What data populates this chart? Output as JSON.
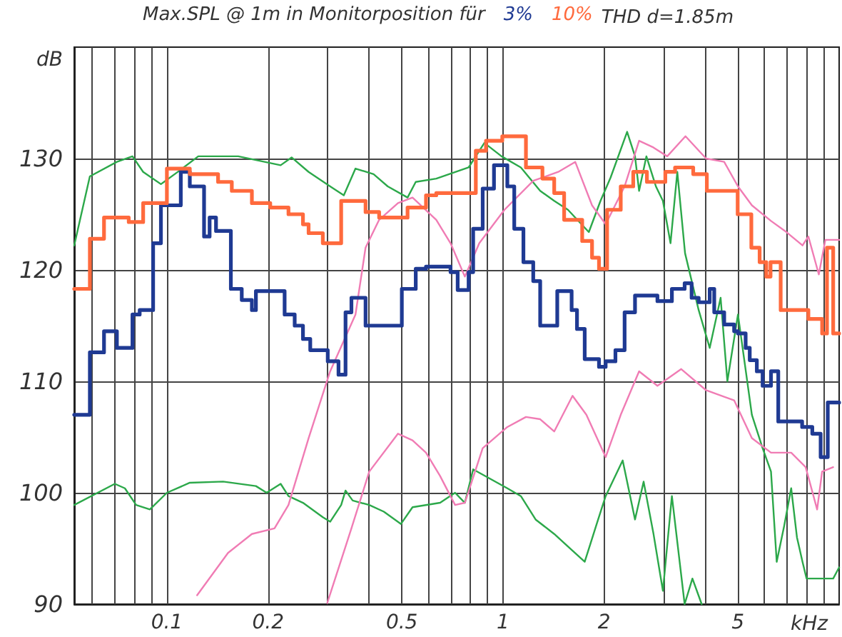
{
  "chart_data": {
    "type": "line",
    "title": "Max.SPL @ 1m in Monitorposition für",
    "xlabel": "kHz",
    "ylabel": "dB",
    "annotations": [
      "THD d=1.85m"
    ],
    "xlim": [
      0.053,
      10
    ],
    "ylim": [
      90,
      140
    ],
    "log": "x",
    "grid": true,
    "legend": "top",
    "marker": "none",
    "xticks": [
      {
        "value": 0.06,
        "label": null
      },
      {
        "value": 0.07,
        "label": null
      },
      {
        "value": 0.08,
        "label": null
      },
      {
        "value": 0.09,
        "label": null
      },
      0.1,
      0.2,
      {
        "value": 0.3,
        "label": null
      },
      {
        "value": 0.4,
        "label": null
      },
      0.5,
      {
        "value": 0.6,
        "label": null
      },
      {
        "value": 0.7,
        "label": null
      },
      {
        "value": 0.8,
        "label": null
      },
      {
        "value": 0.9,
        "label": null
      },
      1,
      2,
      {
        "value": 3,
        "label": null
      },
      {
        "value": 4,
        "label": null
      },
      5,
      {
        "value": 6,
        "label": null
      },
      {
        "value": 7,
        "label": null
      },
      {
        "value": 8,
        "label": null
      },
      {
        "value": 9,
        "label": null
      }
    ],
    "yticks": [
      90,
      100,
      110,
      120,
      130
    ],
    "series": [
      {
        "color": "#2ca84a",
        "x": [
          0.053,
          0.059,
          0.071,
          0.079,
          0.085,
          0.096,
          0.11,
          0.124,
          0.163,
          0.218,
          0.235,
          0.264,
          0.306,
          0.336,
          0.364,
          0.412,
          0.454,
          0.52,
          0.55,
          0.633,
          0.79,
          0.88,
          0.99,
          1.13,
          1.29,
          1.42,
          1.56,
          1.8,
          1.95,
          2.09,
          2.34,
          2.47,
          2.54,
          2.67,
          2.85,
          2.99,
          3.15,
          3.3,
          3.48,
          3.82,
          4.12,
          4.44,
          4.65,
          5.0,
          5.5,
          5.92,
          6.27,
          6.52,
          6.86,
          7.2,
          7.49,
          7.78,
          8.0,
          9.6,
          10
        ],
        "values": [
          122.2,
          128.4,
          129.7,
          130.2,
          128.8,
          127.7,
          129,
          130.2,
          130.2,
          129.4,
          130.1,
          128.8,
          127.5,
          126.7,
          129.1,
          128.6,
          127.5,
          126.5,
          127.9,
          128.2,
          129.2,
          131.4,
          130.2,
          129.2,
          127.1,
          126.2,
          125.4,
          123.4,
          126.2,
          128.3,
          132.4,
          130.2,
          127.1,
          130.2,
          127.5,
          126.2,
          122.4,
          128.8,
          121.5,
          116.4,
          113,
          117.5,
          110,
          116,
          107,
          104,
          101.9,
          93.8,
          97,
          100.4,
          96,
          93.8,
          92.3,
          92.3,
          93.3
        ]
      },
      {
        "color": "#2ca84a",
        "x": [
          0.053,
          0.07,
          0.075,
          0.081,
          0.089,
          0.1,
          0.117,
          0.147,
          0.184,
          0.198,
          0.218,
          0.23,
          0.254,
          0.291,
          0.306,
          0.33,
          0.34,
          0.357,
          0.4,
          0.442,
          0.497,
          0.538,
          0.65,
          0.72,
          0.77,
          0.815,
          1.03,
          1.13,
          1.25,
          1.42,
          1.61,
          1.75,
          1.9,
          2.02,
          2.27,
          2.47,
          2.62,
          2.8,
          2.99,
          3.18,
          3.47,
          3.66,
          3.9
        ],
        "values": [
          98.9,
          100.8,
          100.4,
          98.9,
          98.5,
          100,
          100.9,
          101,
          100.6,
          100,
          100.8,
          99.7,
          99.1,
          97.8,
          97.4,
          98.9,
          100.2,
          99.3,
          98.9,
          98.3,
          97.2,
          98.7,
          99.1,
          100,
          99.1,
          102.1,
          100.4,
          99.7,
          97.6,
          96.3,
          94.8,
          93.8,
          97.2,
          99.7,
          102.9,
          97.6,
          101,
          96.4,
          91.2,
          99.7,
          90,
          92.3,
          90
        ]
      },
      {
        "color": "#f07cb4",
        "x": [
          0.123,
          0.152,
          0.179,
          0.209,
          0.23,
          0.264,
          0.306,
          0.364,
          0.39,
          0.428,
          0.487,
          0.538,
          0.633,
          0.698,
          0.77,
          0.85,
          1.01,
          1.23,
          1.46,
          1.64,
          1.84,
          2.02,
          2.3,
          2.54,
          2.8,
          3.08,
          3.49,
          4.02,
          4.55,
          5.0,
          5.5,
          6.27,
          6.9,
          7.78,
          8.1,
          8.7,
          9.1,
          10
        ],
        "values": [
          90.8,
          94.6,
          96.3,
          96.8,
          98.9,
          104.9,
          110.9,
          116,
          122,
          124.5,
          126,
          126.5,
          124.5,
          122.4,
          119.4,
          122.4,
          125.4,
          128,
          128.8,
          129.7,
          125.8,
          124.1,
          127.5,
          131.6,
          131,
          130.2,
          132,
          130,
          129.7,
          127.5,
          125.8,
          124.4,
          123.5,
          122.2,
          123,
          119.6,
          122.7,
          122.7
        ]
      },
      {
        "color": "#f07cb4",
        "x": [
          0.3,
          0.354,
          0.4,
          0.487,
          0.538,
          0.59,
          0.65,
          0.72,
          0.77,
          0.87,
          1.03,
          1.17,
          1.29,
          1.42,
          1.61,
          1.77,
          2.02,
          2.24,
          2.54,
          2.88,
          3.39,
          4.02,
          4.87,
          5.5,
          6.27,
          7.2,
          7.95,
          8.6,
          8.9,
          9.6
        ],
        "values": [
          90.1,
          96.8,
          101.9,
          105.3,
          104.7,
          103.6,
          101.5,
          98.9,
          99.1,
          104,
          105.9,
          106.8,
          106.6,
          105.5,
          108.7,
          107,
          103.2,
          107,
          110.9,
          109.6,
          111.1,
          109.2,
          108.3,
          104.9,
          103.6,
          103.6,
          102.3,
          98.5,
          101.9,
          102.3
        ]
      },
      {
        "name": "3%",
        "type": "step",
        "color": "#1f3a93",
        "x": [
          0.053,
          0.059,
          0.065,
          0.071,
          0.079,
          0.083,
          0.091,
          0.096,
          0.11,
          0.117,
          0.129,
          0.134,
          0.14,
          0.155,
          0.167,
          0.179,
          0.184,
          0.224,
          0.24,
          0.254,
          0.267,
          0.301,
          0.324,
          0.34,
          0.354,
          0.39,
          0.5,
          0.55,
          0.59,
          0.698,
          0.733,
          0.79,
          0.815,
          0.87,
          0.94,
          1.03,
          1.08,
          1.15,
          1.23,
          1.29,
          1.45,
          1.6,
          1.66,
          1.75,
          1.93,
          2.02,
          2.16,
          2.3,
          2.47,
          2.88,
          3.18,
          3.47,
          3.64,
          3.82,
          4.12,
          4.25,
          4.55,
          4.87,
          5.0,
          5.27,
          5.42,
          5.69,
          5.92,
          6.27,
          6.59,
          7.76,
          8.32,
          8.81,
          9.25,
          10
        ],
        "values": [
          107,
          112.6,
          114.5,
          113,
          116,
          116.4,
          122.4,
          125.8,
          128.8,
          127.5,
          123,
          124.7,
          123.5,
          118.3,
          117.3,
          116.4,
          118.1,
          116,
          115,
          113.8,
          112.8,
          111.8,
          110.6,
          116.2,
          117.5,
          115,
          118.3,
          120.1,
          120.3,
          119.8,
          118.2,
          119.8,
          123.7,
          127.3,
          129.4,
          127.5,
          123.7,
          120.7,
          119,
          115,
          118.1,
          116.4,
          114.7,
          112,
          111.3,
          111.8,
          112.8,
          116.2,
          117.7,
          117.2,
          118.3,
          118.8,
          117.5,
          117.1,
          118.3,
          116.2,
          115.1,
          114.5,
          114.3,
          113,
          111.9,
          110.9,
          109.6,
          110.9,
          106.4,
          105.9,
          105.3,
          103.2,
          108.1,
          108.1
        ]
      },
      {
        "name": "10%",
        "type": "step",
        "color": "#ff6a3d",
        "x": [
          0.053,
          0.059,
          0.065,
          0.077,
          0.085,
          0.1,
          0.117,
          0.142,
          0.156,
          0.179,
          0.203,
          0.23,
          0.254,
          0.264,
          0.291,
          0.33,
          0.39,
          0.428,
          0.52,
          0.59,
          0.633,
          0.83,
          0.89,
          0.995,
          1.17,
          1.31,
          1.42,
          1.52,
          1.72,
          1.84,
          1.93,
          2.04,
          2.24,
          2.44,
          2.68,
          3.04,
          3.25,
          3.68,
          4.04,
          4.99,
          5.48,
          5.8,
          6.07,
          6.25,
          6.7,
          8.1,
          8.9,
          9.2,
          9.6,
          10
        ],
        "values": [
          118.3,
          122.8,
          124.7,
          124.3,
          126,
          129.1,
          128.6,
          127.9,
          127.1,
          126,
          125.6,
          125,
          124.1,
          123.3,
          122.4,
          126.2,
          125.2,
          124.7,
          125.6,
          126.7,
          126.9,
          130.7,
          131.6,
          132,
          129.2,
          128.2,
          126.9,
          124.5,
          122.6,
          121.1,
          120.1,
          125.4,
          127.5,
          128.8,
          127.9,
          128.8,
          129.2,
          128.6,
          127.1,
          125,
          122,
          120.7,
          119.4,
          120.7,
          116.4,
          115.6,
          114.3,
          122,
          114.3,
          114.3
        ]
      }
    ]
  }
}
